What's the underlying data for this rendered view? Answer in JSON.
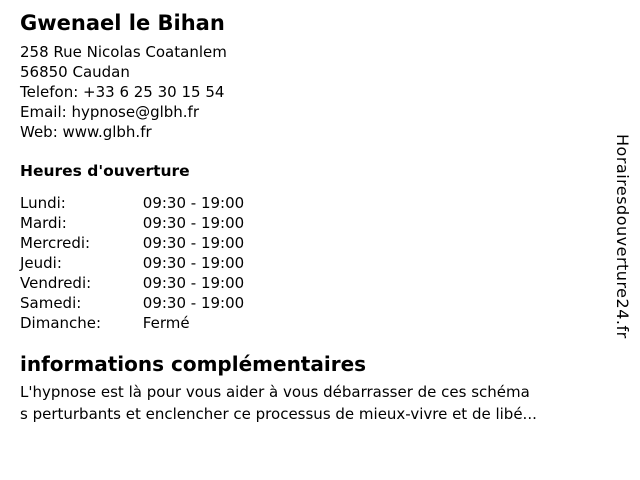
{
  "page": {
    "background": "#ffffff",
    "text_color": "#000000"
  },
  "header": {
    "title": "Gwenael le Bihan"
  },
  "contact": {
    "lines": [
      "258 Rue Nicolas Coatanlem",
      "56850 Caudan",
      "Telefon: +33 6 25 30 15 54",
      "Email: hypnose@glbh.fr",
      "Web: www.glbh.fr"
    ]
  },
  "hours": {
    "title": "Heures d'ouverture",
    "rows": [
      {
        "day": "Lundi:",
        "time": "09:30 - 19:00"
      },
      {
        "day": "Mardi:",
        "time": "09:30 - 19:00"
      },
      {
        "day": "Mercredi:",
        "time": "09:30 - 19:00"
      },
      {
        "day": "Jeudi:",
        "time": "09:30 - 19:00"
      },
      {
        "day": "Vendredi:",
        "time": "09:30 - 19:00"
      },
      {
        "day": "Samedi:",
        "time": "09:30 - 19:00"
      },
      {
        "day": "Dimanche:",
        "time": "Fermé"
      }
    ]
  },
  "info": {
    "title": "informations complémentaires",
    "lines": [
      "L'hypnose est là pour vous aider à vous débarrasser de ces schéma",
      "s perturbants et enclencher ce processus de mieux-vivre et de libé..."
    ]
  },
  "watermark": {
    "text": "Horairesdouverture24.fr"
  }
}
